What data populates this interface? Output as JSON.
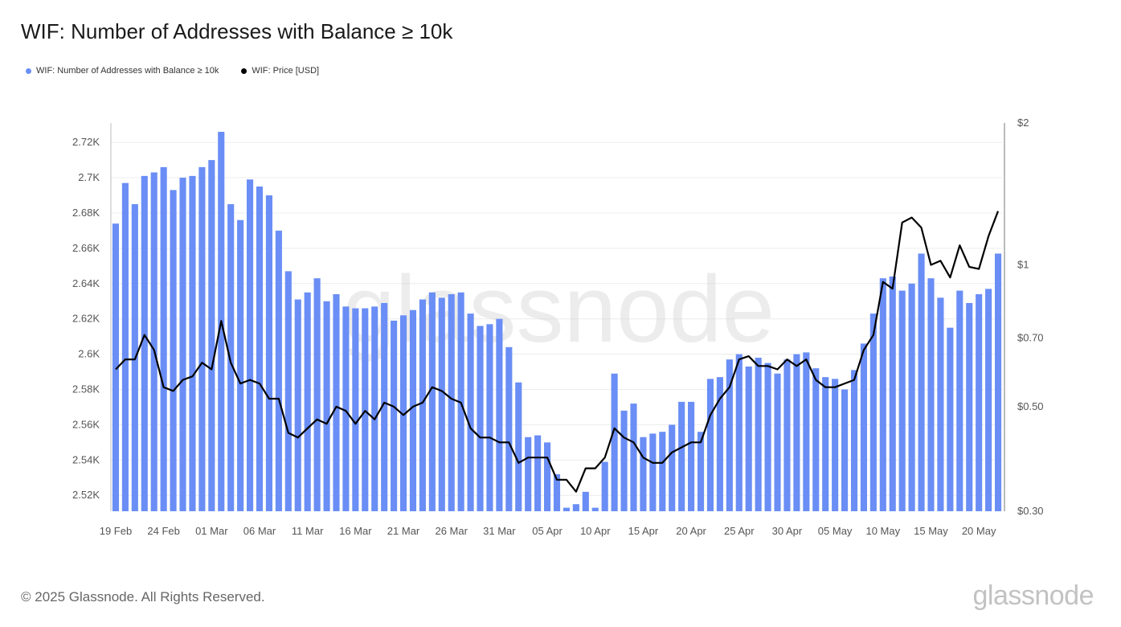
{
  "chart_data": {
    "type": "bar",
    "title": "WIF: Number of Addresses with Balance ≥ 10k",
    "legend": [
      {
        "name": "WIF: Number of Addresses with Balance ≥ 10k",
        "color": "#6a8ef5"
      },
      {
        "name": "WIF: Price [USD]",
        "color": "#000000"
      }
    ],
    "legend_position": "top-left",
    "grid": true,
    "x_tick_labels": [
      "19 Feb",
      "24 Feb",
      "01 Mar",
      "06 Mar",
      "11 Mar",
      "16 Mar",
      "21 Mar",
      "26 Mar",
      "31 Mar",
      "05 Apr",
      "10 Apr",
      "15 Apr",
      "20 Apr",
      "25 Apr",
      "30 Apr",
      "05 May",
      "10 May",
      "15 May",
      "20 May"
    ],
    "y_left": {
      "ticks": [
        2520,
        2540,
        2560,
        2580,
        2600,
        2620,
        2640,
        2660,
        2680,
        2700,
        2720
      ],
      "tick_labels": [
        "2.52K",
        "2.54K",
        "2.56K",
        "2.58K",
        "2.6K",
        "2.62K",
        "2.64K",
        "2.66K",
        "2.68K",
        "2.7K",
        "2.72K"
      ],
      "range": [
        2511,
        2731
      ]
    },
    "y_right": {
      "scale": "log",
      "ticks": [
        0.3,
        0.5,
        0.7,
        1,
        2
      ],
      "tick_labels": [
        "$0.30",
        "$0.50",
        "$0.70",
        "$1",
        "$2"
      ],
      "range": [
        0.3,
        2
      ]
    },
    "x_start": "2025-02-19",
    "x_end": "2025-05-24",
    "series": [
      {
        "name": "WIF: Number of Addresses with Balance ≥ 10k",
        "type": "bar",
        "color": "#6a8ef5",
        "values": [
          2674,
          2697,
          2685,
          2701,
          2703,
          2706,
          2693,
          2700,
          2701,
          2706,
          2710,
          2726,
          2685,
          2676,
          2699,
          2695,
          2690,
          2670,
          2647,
          2631,
          2635,
          2643,
          2630,
          2634,
          2627,
          2626,
          2626,
          2627,
          2629,
          2619,
          2622,
          2625,
          2631,
          2635,
          2632,
          2634,
          2635,
          2623,
          2616,
          2617,
          2620,
          2604,
          2584,
          2553,
          2554,
          2550,
          2532,
          2513,
          2515,
          2522,
          2513,
          2539,
          2589,
          2568,
          2572,
          2553,
          2555,
          2556,
          2560,
          2573,
          2573,
          2556,
          2586,
          2587,
          2597,
          2600,
          2593,
          2598,
          2595,
          2589,
          2597,
          2600,
          2601,
          2592,
          2587,
          2586,
          2580,
          2591,
          2606,
          2623,
          2643,
          2644,
          2636,
          2640,
          2657,
          2643,
          2632,
          2615,
          2636,
          2629,
          2634,
          2637,
          2657
        ]
      },
      {
        "name": "WIF: Price [USD]",
        "type": "line",
        "color": "#000000",
        "values": [
          0.6,
          0.63,
          0.63,
          0.71,
          0.66,
          0.55,
          0.54,
          0.57,
          0.58,
          0.62,
          0.6,
          0.76,
          0.62,
          0.56,
          0.57,
          0.56,
          0.52,
          0.52,
          0.44,
          0.43,
          0.45,
          0.47,
          0.46,
          0.5,
          0.49,
          0.46,
          0.49,
          0.47,
          0.51,
          0.5,
          0.48,
          0.5,
          0.51,
          0.55,
          0.54,
          0.52,
          0.51,
          0.45,
          0.43,
          0.43,
          0.42,
          0.42,
          0.38,
          0.39,
          0.39,
          0.39,
          0.35,
          0.35,
          0.33,
          0.37,
          0.37,
          0.39,
          0.45,
          0.43,
          0.42,
          0.39,
          0.38,
          0.38,
          0.4,
          0.41,
          0.42,
          0.42,
          0.48,
          0.52,
          0.55,
          0.63,
          0.64,
          0.61,
          0.61,
          0.6,
          0.63,
          0.61,
          0.63,
          0.57,
          0.55,
          0.55,
          0.56,
          0.57,
          0.66,
          0.71,
          0.92,
          0.89,
          1.23,
          1.26,
          1.2,
          1.0,
          1.02,
          0.94,
          1.1,
          0.99,
          0.98,
          1.15,
          1.3
        ]
      }
    ]
  },
  "watermark": "glassnode",
  "footer": {
    "copyright": "© 2025 Glassnode. All Rights Reserved.",
    "logo": "glassnode"
  }
}
